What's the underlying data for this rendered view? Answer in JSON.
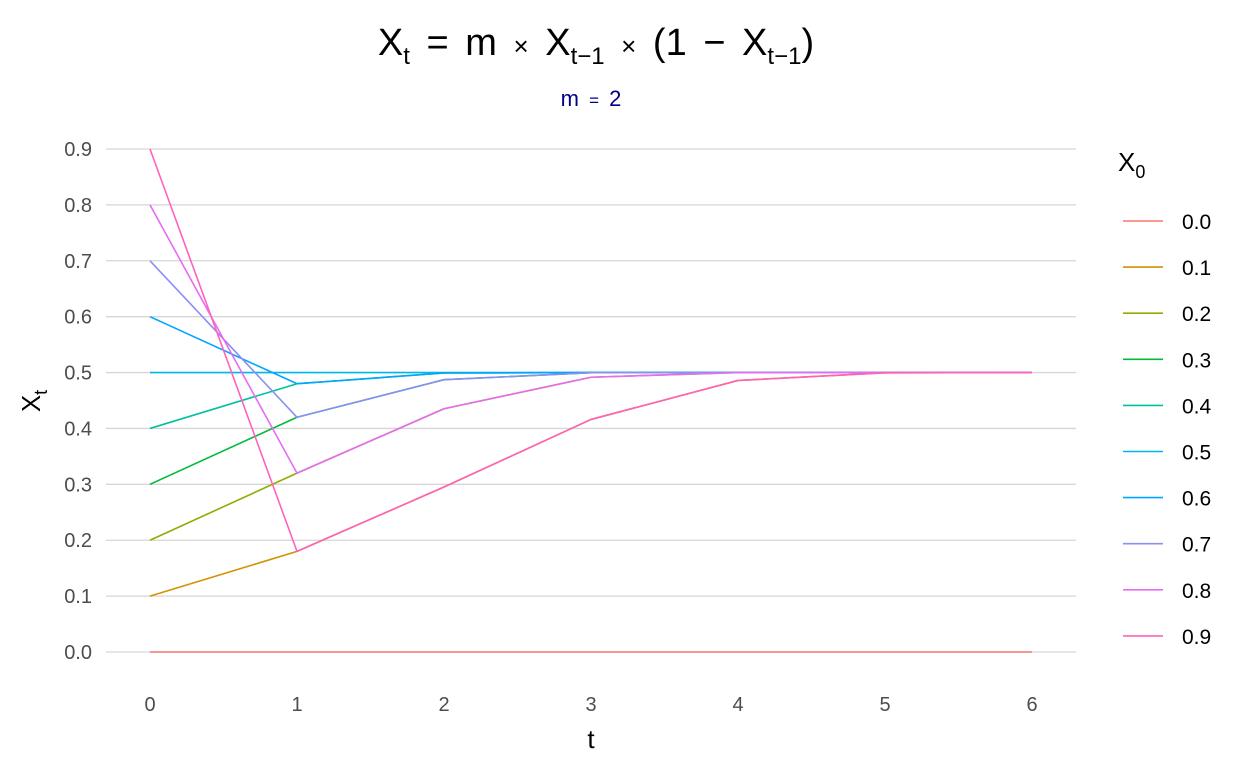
{
  "chart_data": {
    "type": "line",
    "title": {
      "lhs": "X",
      "lhs_sub": "t",
      "eq": "=",
      "m": "m",
      "times1": "×",
      "x1": "X",
      "x1_sub": "t−1",
      "times2": "×",
      "paren_open": "(",
      "one": "1",
      "minus": "−",
      "x2": "X",
      "x2_sub": "t−1",
      "paren_close": ")"
    },
    "subtitle": {
      "var": "m",
      "eq": "=",
      "value": "2",
      "color": "#00008B"
    },
    "xlabel": "t",
    "ylabel": {
      "base": "X",
      "sub": "t"
    },
    "xlim": [
      0,
      6
    ],
    "ylim": [
      0,
      0.9
    ],
    "x_ticks": [
      "0",
      "1",
      "2",
      "3",
      "4",
      "5",
      "6"
    ],
    "y_ticks": [
      "0.0",
      "0.1",
      "0.2",
      "0.3",
      "0.4",
      "0.5",
      "0.6",
      "0.7",
      "0.8",
      "0.9"
    ],
    "grid": "horizontal major",
    "legend": {
      "title": {
        "base": "X",
        "sub": "0"
      },
      "position": "right"
    },
    "x": [
      0,
      1,
      2,
      3,
      4,
      5,
      6
    ],
    "series": [
      {
        "name": "0.0",
        "color": "#F8766D",
        "values": [
          0,
          0,
          0,
          0,
          0,
          0,
          0
        ]
      },
      {
        "name": "0.1",
        "color": "#D39200",
        "values": [
          0.1,
          0.18,
          0.2952,
          0.4161,
          0.4859,
          0.4996,
          0.5
        ]
      },
      {
        "name": "0.2",
        "color": "#93AA00",
        "values": [
          0.2,
          0.32,
          0.4352,
          0.4916,
          0.4999,
          0.5,
          0.5
        ]
      },
      {
        "name": "0.3",
        "color": "#00BA38",
        "values": [
          0.3,
          0.42,
          0.4872,
          0.4997,
          0.5,
          0.5,
          0.5
        ]
      },
      {
        "name": "0.4",
        "color": "#00C19F",
        "values": [
          0.4,
          0.48,
          0.4992,
          0.5,
          0.5,
          0.5,
          0.5
        ]
      },
      {
        "name": "0.5",
        "color": "#00B9E3",
        "values": [
          0.5,
          0.5,
          0.5,
          0.5,
          0.5,
          0.5,
          0.5
        ]
      },
      {
        "name": "0.6",
        "color": "#00A5FF",
        "values": [
          0.6,
          0.48,
          0.4992,
          0.5,
          0.5,
          0.5,
          0.5
        ]
      },
      {
        "name": "0.7",
        "color": "#8B8FF5",
        "values": [
          0.7,
          0.42,
          0.4872,
          0.4997,
          0.5,
          0.5,
          0.5
        ]
      },
      {
        "name": "0.8",
        "color": "#E76BF3",
        "values": [
          0.8,
          0.32,
          0.4352,
          0.4916,
          0.4999,
          0.5,
          0.5
        ]
      },
      {
        "name": "0.9",
        "color": "#FF62BC",
        "values": [
          0.9,
          0.18,
          0.2952,
          0.4161,
          0.4859,
          0.4996,
          0.5
        ]
      }
    ]
  }
}
